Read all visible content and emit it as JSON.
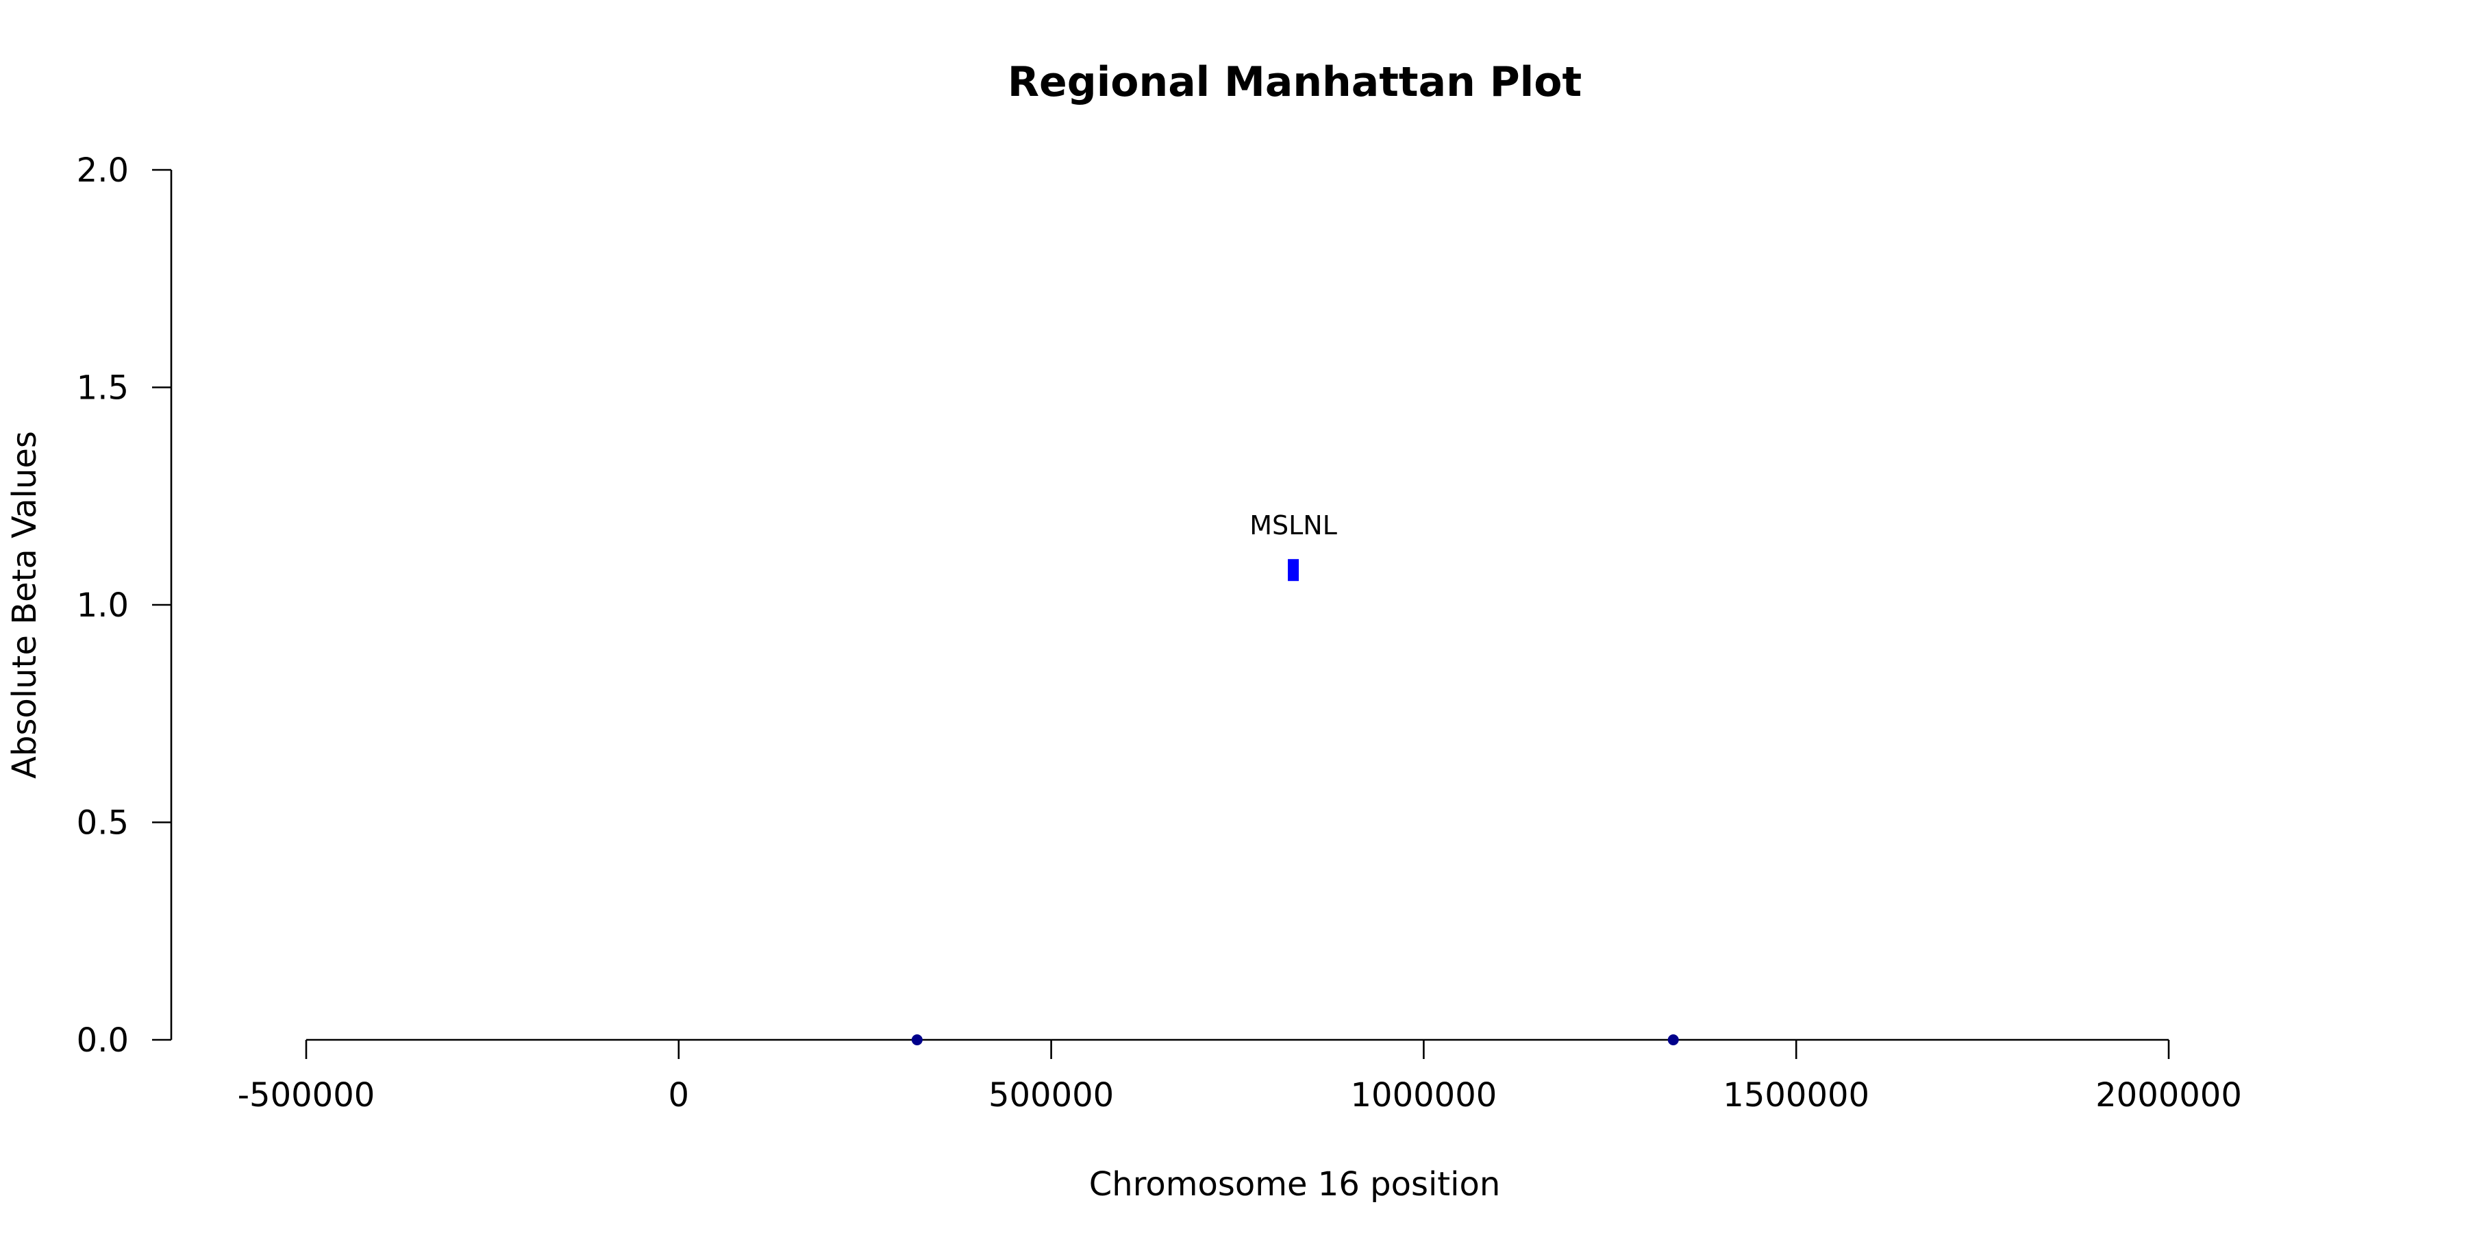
{
  "chart_data": {
    "type": "scatter",
    "title": "Regional Manhattan Plot",
    "xlabel": "Chromosome 16 position",
    "ylabel": "Absolute Beta Values",
    "xlim": [
      -500000,
      2000000
    ],
    "ylim": [
      0,
      2
    ],
    "x_ticks": [
      -500000,
      0,
      500000,
      1000000,
      1500000,
      2000000
    ],
    "x_tick_labels": [
      "-500000",
      "0",
      "500000",
      "1000000",
      "1500000",
      "2000000"
    ],
    "y_ticks": [
      0,
      0.5,
      1,
      1.5,
      2
    ],
    "y_tick_labels": [
      "0.0",
      "0.5",
      "1.0",
      "1.5",
      "2.0"
    ],
    "grid": false,
    "legend": "none",
    "points": [
      {
        "x": 320000,
        "y": 0.0,
        "color": "#00008b",
        "shape": "circle"
      },
      {
        "x": 1335000,
        "y": 0.0,
        "color": "#00008b",
        "shape": "circle"
      },
      {
        "x": 825000,
        "y": 1.08,
        "color": "#0000ff",
        "shape": "rect",
        "label": "MSLNL"
      }
    ]
  }
}
